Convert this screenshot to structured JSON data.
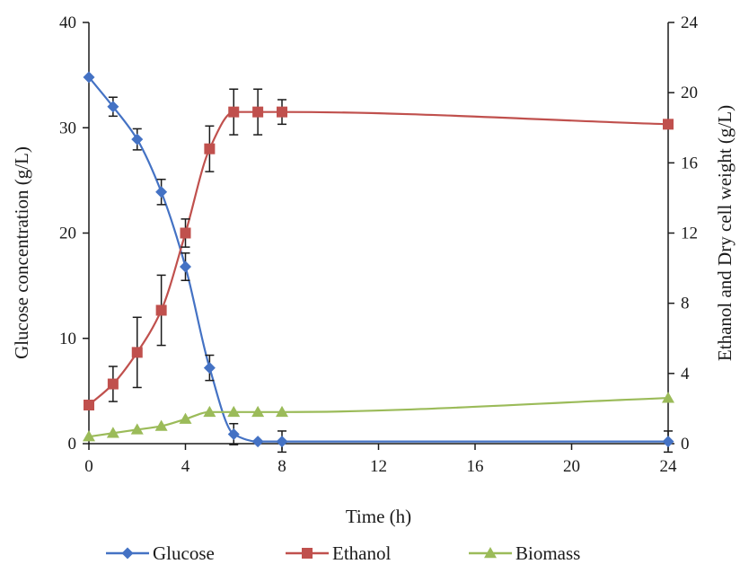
{
  "chart_data": {
    "type": "line",
    "xlabel": "Time (h)",
    "ylabel_left": "Glucose concentration (g/L)",
    "ylabel_right": "Ethanol and Dry cell weight (g/L)",
    "x_ticks": [
      0,
      4,
      8,
      12,
      16,
      20,
      24
    ],
    "y_left_ticks": [
      0,
      10,
      20,
      30,
      40
    ],
    "y_right_ticks": [
      0,
      4,
      8,
      12,
      16,
      20,
      24
    ],
    "xlim": [
      0,
      24
    ],
    "ylim_left": [
      0,
      40
    ],
    "ylim_right": [
      0,
      24
    ],
    "grid": false,
    "legend_position": "bottom",
    "series": [
      {
        "name": "Glucose",
        "axis": "left",
        "color": "#4472C4",
        "marker": "diamond",
        "x": [
          0,
          1,
          2,
          3,
          4,
          5,
          6,
          7,
          8,
          24
        ],
        "y": [
          34.8,
          32.0,
          28.9,
          23.9,
          16.8,
          7.2,
          0.9,
          0.2,
          0.2,
          0.2
        ],
        "err": [
          0,
          0.9,
          1.0,
          1.2,
          1.3,
          1.2,
          1.0,
          0,
          1.0,
          1.0
        ]
      },
      {
        "name": "Ethanol",
        "axis": "right",
        "color": "#C0504D",
        "marker": "square",
        "x": [
          0,
          1,
          2,
          3,
          4,
          5,
          6,
          7,
          8,
          24
        ],
        "y": [
          2.2,
          3.4,
          5.2,
          7.6,
          12.0,
          16.8,
          18.9,
          18.9,
          18.9,
          18.2
        ],
        "err": [
          0,
          1.0,
          2.0,
          2.0,
          0.8,
          1.3,
          1.3,
          1.3,
          0.7,
          0
        ]
      },
      {
        "name": "Biomass",
        "axis": "right",
        "color": "#9BBB59",
        "marker": "triangle",
        "x": [
          0,
          1,
          2,
          3,
          4,
          5,
          6,
          7,
          8,
          24
        ],
        "y": [
          0.4,
          0.6,
          0.8,
          1.0,
          1.4,
          1.8,
          1.8,
          1.8,
          1.8,
          2.6
        ],
        "err": [
          0,
          0,
          0,
          0,
          0,
          0,
          0,
          0,
          0,
          0
        ]
      }
    ]
  }
}
